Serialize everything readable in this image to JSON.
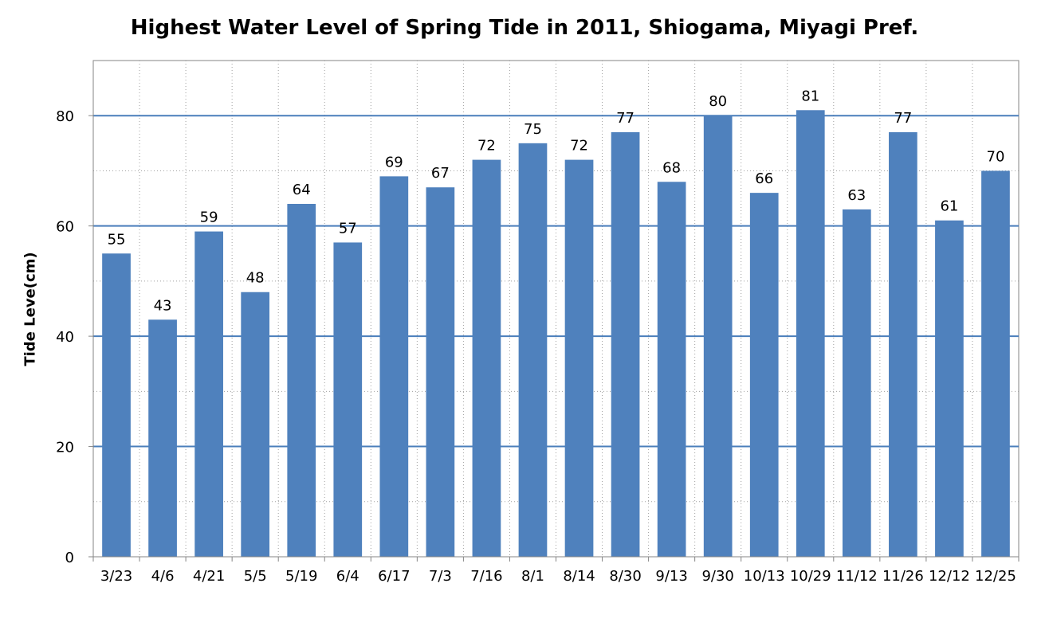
{
  "chart_data": {
    "type": "bar",
    "title": "Highest Water Level of Spring Tide in 2011, Shiogama, Miyagi Pref.",
    "xlabel": "",
    "ylabel": "Tide Leve(cm)",
    "categories": [
      "3/23",
      "4/6",
      "4/21",
      "5/5",
      "5/19",
      "6/4",
      "6/17",
      "7/3",
      "7/16",
      "8/1",
      "8/14",
      "8/30",
      "9/13",
      "9/30",
      "10/13",
      "10/29",
      "11/12",
      "11/26",
      "12/12",
      "12/25"
    ],
    "values": [
      55,
      43,
      59,
      48,
      64,
      57,
      69,
      67,
      72,
      75,
      72,
      77,
      68,
      80,
      66,
      81,
      63,
      77,
      61,
      70
    ],
    "ylim": [
      0,
      90
    ],
    "yticks": [
      0,
      20,
      40,
      60,
      80
    ],
    "data_labels": true,
    "grid": "major solid horizontal, minor dotted horizontal and vertical",
    "legend": "none",
    "colors": {
      "bar": "#4F81BD",
      "major_grid": "#4A7EBB",
      "minor_grid": "#A0A0A0",
      "axis": "#868686"
    }
  }
}
